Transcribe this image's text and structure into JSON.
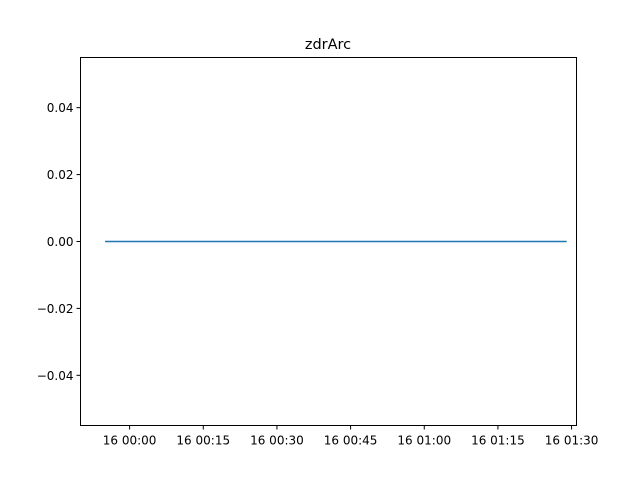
{
  "chart_data": {
    "type": "line",
    "title": "zdrArc",
    "xlabel": "",
    "ylabel": "",
    "x_ticks": [
      "16 00:00",
      "16 00:15",
      "16 00:30",
      "16 00:45",
      "16 01:00",
      "16 01:15",
      "16 01:30"
    ],
    "y_ticks": [
      "0.04",
      "0.02",
      "0.00",
      "−0.02",
      "−0.04"
    ],
    "ylim": [
      -0.055,
      0.055
    ],
    "xlim": [
      "16 23:50",
      "17 01:31"
    ],
    "series": [
      {
        "color": "#1f77b4",
        "x": [
          "16 23:55",
          "17 01:29"
        ],
        "y": [
          0.0,
          0.0
        ]
      }
    ],
    "grid": false,
    "legend": "none"
  }
}
